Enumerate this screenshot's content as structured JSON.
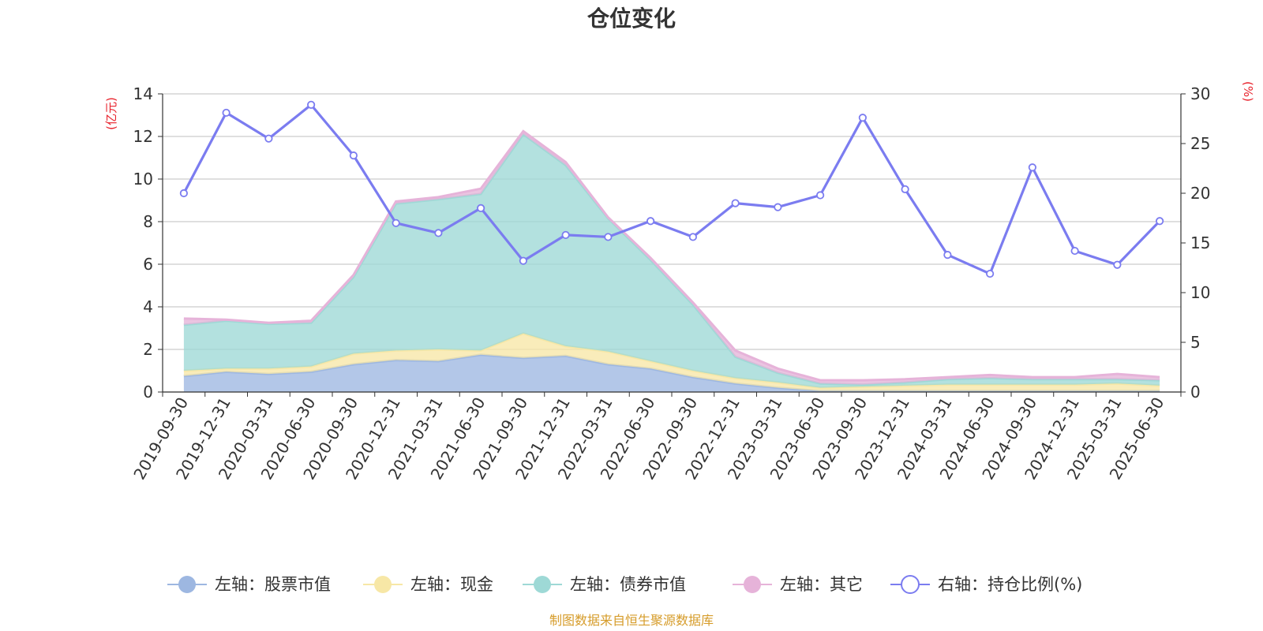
{
  "chart_data": {
    "type": "area",
    "title": "仓位变化",
    "y_left_unit": "(亿元)",
    "y_right_unit": "(%)",
    "y_left_lim": [
      0,
      14
    ],
    "y_left_ticks": [
      "0",
      "2",
      "4",
      "6",
      "8",
      "10",
      "12",
      "14"
    ],
    "y_right_lim": [
      0,
      30
    ],
    "y_right_ticks": [
      "0",
      "5",
      "10",
      "15",
      "20",
      "25",
      "30"
    ],
    "x_categories": [
      "2019-09-30",
      "2019-12-31",
      "2020-03-31",
      "2020-06-30",
      "2020-09-30",
      "2020-12-31",
      "2021-03-31",
      "2021-06-30",
      "2021-09-30",
      "2021-12-31",
      "2022-03-31",
      "2022-06-30",
      "2022-09-30",
      "2022-12-31",
      "2023-03-31",
      "2023-06-30",
      "2023-09-30",
      "2023-12-31",
      "2024-03-31",
      "2024-06-30",
      "2024-09-30",
      "2024-12-31",
      "2025-03-31",
      "2025-06-30"
    ],
    "stacked_series": [
      {
        "name": "左轴：股票市值",
        "color": "#9db7e1",
        "values": [
          0.75,
          0.95,
          0.85,
          0.95,
          1.3,
          1.5,
          1.45,
          1.75,
          1.6,
          1.7,
          1.3,
          1.1,
          0.7,
          0.4,
          0.2,
          0.05,
          0.05,
          0.05,
          0.05,
          0.05,
          0.05,
          0.05,
          0.05,
          0.05
        ]
      },
      {
        "name": "左轴：现金",
        "color": "#f7e7a6",
        "values": [
          0.25,
          0.15,
          0.25,
          0.25,
          0.5,
          0.45,
          0.55,
          0.2,
          1.15,
          0.45,
          0.6,
          0.35,
          0.3,
          0.25,
          0.25,
          0.15,
          0.2,
          0.25,
          0.3,
          0.3,
          0.3,
          0.3,
          0.35,
          0.25
        ]
      },
      {
        "name": "左轴：债券市值",
        "color": "#9ed9d6",
        "values": [
          2.15,
          2.25,
          2.1,
          2.05,
          3.6,
          6.9,
          7.05,
          7.35,
          9.35,
          8.5,
          6.25,
          4.75,
          3.1,
          1.0,
          0.45,
          0.2,
          0.1,
          0.15,
          0.25,
          0.3,
          0.25,
          0.25,
          0.2,
          0.25
        ]
      },
      {
        "name": "左轴：其它",
        "color": "#e6b3d9",
        "values": [
          0.3,
          0.05,
          0.05,
          0.1,
          0.1,
          0.1,
          0.1,
          0.25,
          0.15,
          0.15,
          0.05,
          0.1,
          0.1,
          0.3,
          0.2,
          0.15,
          0.2,
          0.15,
          0.1,
          0.15,
          0.1,
          0.1,
          0.25,
          0.15
        ]
      }
    ],
    "line_series": {
      "name": "右轴：持仓比例(%)",
      "color": "#7b7cf0",
      "axis": "right",
      "values": [
        20.0,
        28.1,
        25.5,
        28.9,
        23.8,
        17.0,
        16.0,
        18.5,
        13.2,
        15.8,
        15.6,
        17.2,
        15.6,
        19.0,
        18.6,
        19.8,
        27.6,
        20.4,
        13.8,
        11.9,
        22.6,
        14.2,
        12.8,
        17.2
      ]
    },
    "legend": [
      {
        "label": "左轴：股票市值",
        "color": "#9db7e1",
        "marker": "filled"
      },
      {
        "label": "左轴：现金",
        "color": "#f7e7a6",
        "marker": "filled"
      },
      {
        "label": "左轴：债券市值",
        "color": "#9ed9d6",
        "marker": "filled"
      },
      {
        "label": "左轴：其它",
        "color": "#e6b3d9",
        "marker": "filled"
      },
      {
        "label": "右轴：持仓比例(%)",
        "color": "#7b7cf0",
        "marker": "hollow"
      }
    ],
    "legend_position": "bottom",
    "grid": true,
    "source_note": "制图数据来自恒生聚源数据库",
    "unit_color": "#e8202a",
    "source_color": "#d69c2a"
  }
}
